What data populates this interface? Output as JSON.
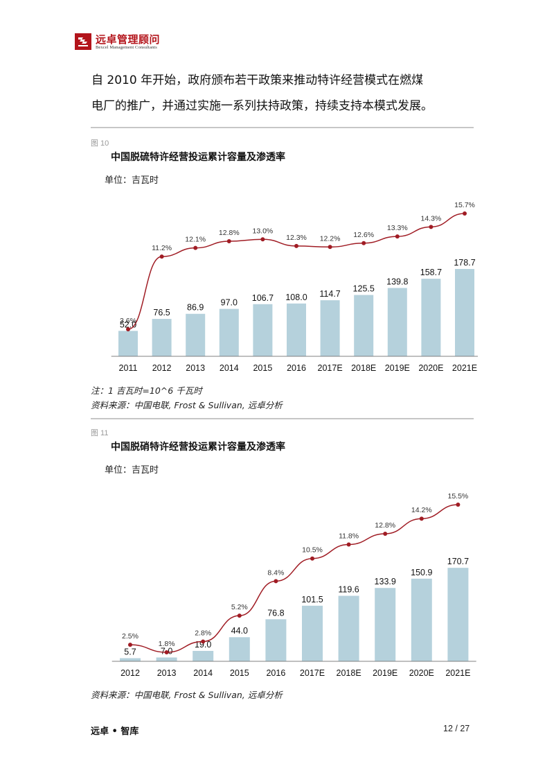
{
  "header": {
    "logo_cn": "远卓管理顾问",
    "logo_en": "Bexcel Management Consultants"
  },
  "intro": {
    "line1": "自 2010 年开始，政府颁布若干政策来推动特许经营模式在燃煤",
    "line2": "电厂的推广，并通过实施一系列扶持政策，持续支持本模式发展。"
  },
  "figure10": {
    "label": "图 10",
    "title": "中国脱硫特许经营投运累计容量及渗透率",
    "unit": "单位：吉瓦时",
    "note": "注：1 吉瓦时=10^6 千瓦时",
    "source": "资料来源：中国电联, Frost & Sullivan, 远卓分析"
  },
  "figure11": {
    "label": "图 11",
    "title": "中国脱硝特许经营投运累计容量及渗透率",
    "unit": "单位：吉瓦时",
    "source": "资料来源：中国电联, Frost & Sullivan, 远卓分析"
  },
  "footer": {
    "left": "远卓 • 智库",
    "page": "12 / 27"
  },
  "colors": {
    "bar": "#b5d1dc",
    "line": "#a01c24",
    "axis": "#7f7f7f",
    "logo_red": "#b3141b"
  },
  "chart_data": [
    {
      "type": "bar+line",
      "categories": [
        "2011",
        "2012",
        "2013",
        "2014",
        "2015",
        "2016",
        "2017E",
        "2018E",
        "2019E",
        "2020E",
        "2021E"
      ],
      "bar_values": [
        52.0,
        76.5,
        86.9,
        97.0,
        106.7,
        108.0,
        114.7,
        125.5,
        139.8,
        158.7,
        178.7
      ],
      "bar_labels": [
        "52.0",
        "76.5",
        "86.9",
        "97.0",
        "106.7",
        "108.0",
        "114.7",
        "125.5",
        "139.8",
        "158.7",
        "178.7"
      ],
      "line_values": [
        3.6,
        11.2,
        12.1,
        12.8,
        13.0,
        12.3,
        12.2,
        12.6,
        13.3,
        14.3,
        15.7
      ],
      "line_labels": [
        "3.6%",
        "11.2%",
        "12.1%",
        "12.8%",
        "13.0%",
        "12.3%",
        "12.2%",
        "12.6%",
        "13.3%",
        "14.3%",
        "15.7%"
      ],
      "bar_max": 180,
      "line_min": 0,
      "line_max": 16
    },
    {
      "type": "bar+line",
      "categories": [
        "2012",
        "2013",
        "2014",
        "2015",
        "2016",
        "2017E",
        "2018E",
        "2019E",
        "2020E",
        "2021E"
      ],
      "bar_values": [
        5.7,
        7.0,
        19.0,
        44.0,
        76.8,
        101.5,
        119.6,
        133.9,
        150.9,
        170.7
      ],
      "bar_labels": [
        "5.7",
        "7.0",
        "19.0",
        "44.0",
        "76.8",
        "101.5",
        "119.6",
        "133.9",
        "150.9",
        "170.7"
      ],
      "line_values": [
        2.5,
        1.8,
        2.8,
        5.2,
        8.4,
        10.5,
        11.8,
        12.8,
        14.2,
        15.5
      ],
      "line_labels": [
        "2.5%",
        "1.8%",
        "2.8%",
        "5.2%",
        "8.4%",
        "10.5%",
        "11.8%",
        "12.8%",
        "14.2%",
        "15.5%"
      ],
      "bar_max": 180,
      "line_min": 0,
      "line_max": 16
    }
  ]
}
